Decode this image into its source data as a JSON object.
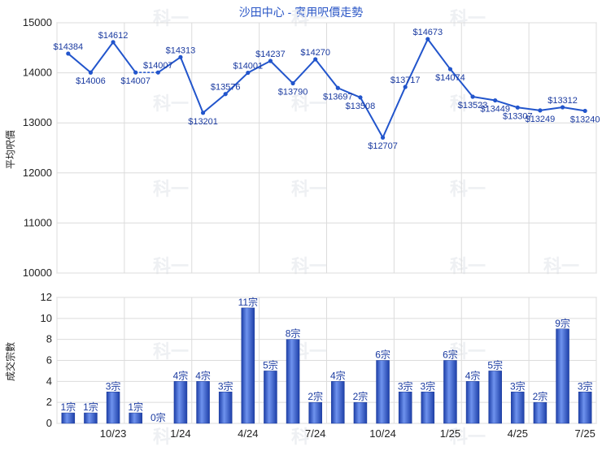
{
  "chart_data": [
    {
      "type": "line",
      "title": "沙田中心 - 實用呎價走勢",
      "ylabel": "平均呎價",
      "ylim": [
        10000,
        15000
      ],
      "yticks": [
        10000,
        11000,
        12000,
        13000,
        14000,
        15000
      ],
      "grid": true,
      "color": "#2255cc",
      "label_prefix": "$",
      "values": [
        14384,
        14006,
        14612,
        14007,
        14007,
        14313,
        13201,
        13576,
        14001,
        14237,
        13790,
        14270,
        13697,
        13508,
        12707,
        13717,
        14673,
        14074,
        13523,
        13449,
        13307,
        13249,
        13312,
        13240
      ],
      "gap_segments": [
        3
      ]
    },
    {
      "type": "bar",
      "ylabel": "成交宗數",
      "ylim": [
        0,
        12
      ],
      "yticks": [
        0,
        2,
        4,
        6,
        8,
        10,
        12
      ],
      "grid": true,
      "color": "#2a55cc",
      "value_suffix": "宗",
      "values": [
        1,
        1,
        3,
        1,
        0,
        4,
        4,
        3,
        11,
        5,
        8,
        2,
        4,
        2,
        6,
        3,
        3,
        6,
        4,
        5,
        3,
        2,
        9,
        3
      ],
      "x_tick_labels": [
        "10/23",
        "1/24",
        "4/24",
        "7/24",
        "10/24",
        "1/25",
        "4/25",
        "7/25"
      ]
    }
  ],
  "watermark": "科一"
}
